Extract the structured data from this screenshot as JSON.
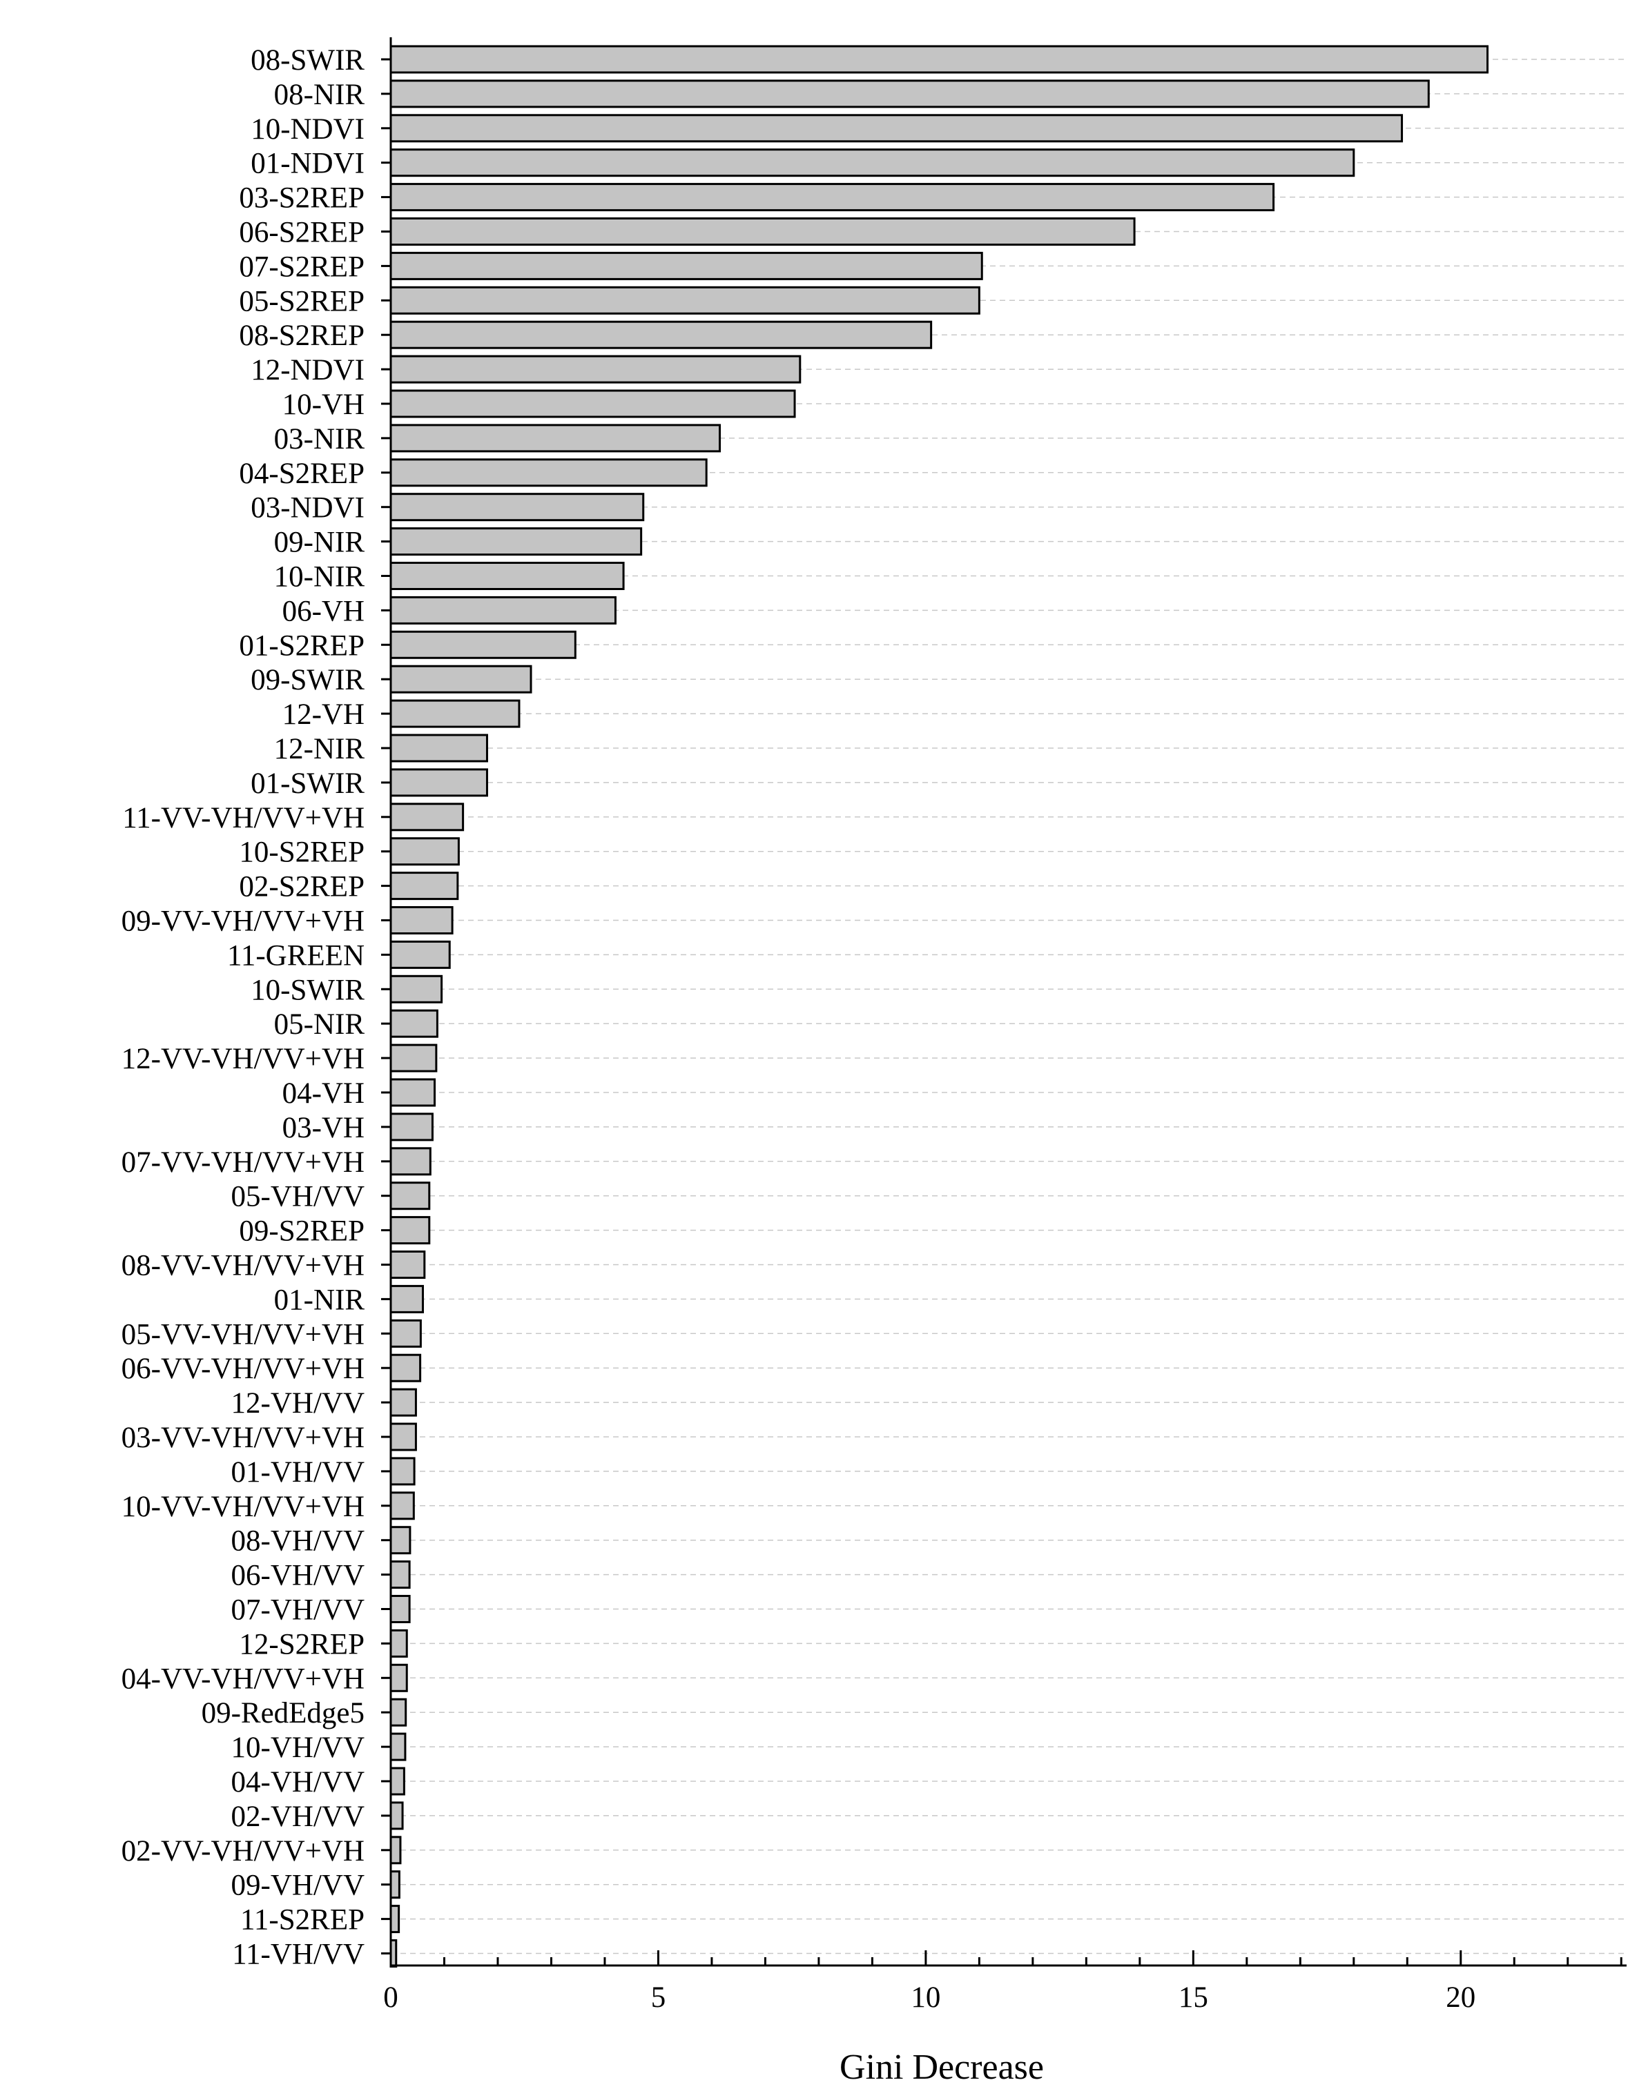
{
  "chart_data": {
    "type": "bar",
    "orientation": "horizontal",
    "categories": [
      "08-SWIR",
      "08-NIR",
      "10-NDVI",
      "01-NDVI",
      "03-S2REP",
      "06-S2REP",
      "07-S2REP",
      "05-S2REP",
      "08-S2REP",
      "12-NDVI",
      "10-VH",
      "03-NIR",
      "04-S2REP",
      "03-NDVI",
      "09-NIR",
      "10-NIR",
      "06-VH",
      "01-S2REP",
      "09-SWIR",
      "12-VH",
      "12-NIR",
      "01-SWIR",
      "11-VV-VH/VV+VH",
      "10-S2REP",
      "02-S2REP",
      "09-VV-VH/VV+VH",
      "11-GREEN",
      "10-SWIR",
      "05-NIR",
      "12-VV-VH/VV+VH",
      "04-VH",
      "03-VH",
      "07-VV-VH/VV+VH",
      "05-VH/VV",
      "09-S2REP",
      "08-VV-VH/VV+VH",
      "01-NIR",
      "05-VV-VH/VV+VH",
      "06-VV-VH/VV+VH",
      "12-VH/VV",
      "03-VV-VH/VV+VH",
      "01-VH/VV",
      "10-VV-VH/VV+VH",
      "08-VH/VV",
      "06-VH/VV",
      "07-VH/VV",
      "12-S2REP",
      "04-VV-VH/VV+VH",
      "09-RedEdge5",
      "10-VH/VV",
      "04-VH/VV",
      "02-VH/VV",
      "02-VV-VH/VV+VH",
      "09-VH/VV",
      "11-S2REP",
      "11-VH/VV"
    ],
    "values": [
      20.5,
      19.4,
      18.9,
      18.0,
      16.5,
      13.9,
      11.05,
      11.0,
      10.1,
      7.65,
      7.55,
      6.15,
      5.9,
      4.72,
      4.68,
      4.35,
      4.2,
      3.45,
      2.62,
      2.4,
      1.8,
      1.8,
      1.35,
      1.27,
      1.25,
      1.15,
      1.1,
      0.95,
      0.87,
      0.85,
      0.82,
      0.78,
      0.74,
      0.72,
      0.72,
      0.63,
      0.6,
      0.56,
      0.55,
      0.47,
      0.47,
      0.44,
      0.43,
      0.36,
      0.35,
      0.35,
      0.3,
      0.3,
      0.28,
      0.27,
      0.25,
      0.22,
      0.18,
      0.16,
      0.15,
      0.1
    ],
    "xlabel": "Gini Decrease",
    "ylabel": "",
    "xlim": [
      0,
      23.1
    ],
    "xticks": [
      0,
      5,
      10,
      15,
      20
    ],
    "xtick_labels": [
      "0",
      "5",
      "10",
      "15",
      "20"
    ],
    "minor_tick_step": 1,
    "grid": "horizontal dashed",
    "colors": {
      "bar_fill": "#c4c4c4",
      "bar_stroke": "#000000",
      "grid": "#c8c8c8"
    }
  }
}
